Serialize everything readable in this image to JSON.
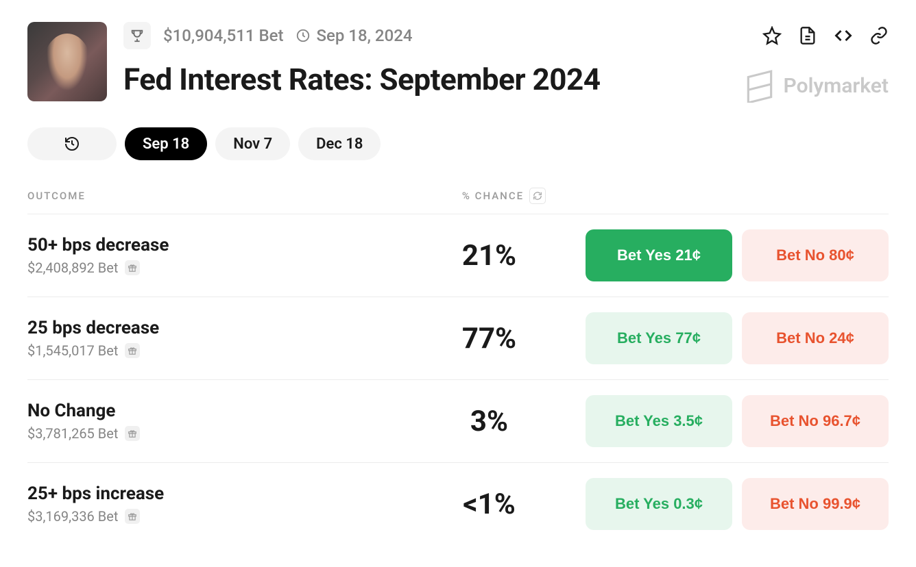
{
  "meta": {
    "volume": "$10,904,511 Bet",
    "date": "Sep 18, 2024"
  },
  "title": "Fed Interest Rates: September 2024",
  "brand": "Polymarket",
  "tabs": [
    {
      "label": "Sep 18",
      "active": true
    },
    {
      "label": "Nov 7",
      "active": false
    },
    {
      "label": "Dec 18",
      "active": false
    }
  ],
  "table_head": {
    "outcome": "OUTCOME",
    "chance": "% CHANCE"
  },
  "outcomes": [
    {
      "name": "50+ bps decrease",
      "sub": "$2,408,892 Bet",
      "chance": "21%",
      "yes_label": "Bet Yes 21¢",
      "no_label": "Bet No 80¢",
      "yes_solid": true
    },
    {
      "name": "25 bps decrease",
      "sub": "$1,545,017 Bet",
      "chance": "77%",
      "yes_label": "Bet Yes 77¢",
      "no_label": "Bet No 24¢",
      "yes_solid": false
    },
    {
      "name": "No Change",
      "sub": "$3,781,265 Bet",
      "chance": "3%",
      "yes_label": "Bet Yes 3.5¢",
      "no_label": "Bet No 96.7¢",
      "yes_solid": false
    },
    {
      "name": "25+ bps increase",
      "sub": "$3,169,336 Bet",
      "chance": "<1%",
      "yes_label": "Bet Yes 0.3¢",
      "no_label": "Bet No 99.9¢",
      "yes_solid": false
    }
  ],
  "colors": {
    "yes_solid_bg": "#27ae60",
    "yes_soft_bg": "#e7f6ed",
    "yes_text": "#27ae60",
    "no_soft_bg": "#fdecea",
    "no_text": "#e8532f",
    "muted": "#858585",
    "border": "#ececec"
  }
}
